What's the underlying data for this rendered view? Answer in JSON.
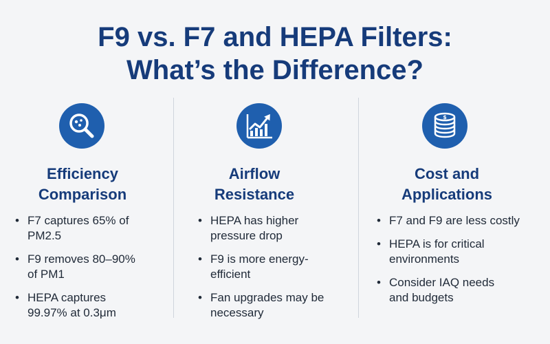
{
  "title": {
    "line1": "F9 vs. F7 and HEPA Filters:",
    "line2": "What’s the Difference?"
  },
  "colors": {
    "accent": "#1f5fae",
    "heading": "#163b7a",
    "background": "#f4f5f7"
  },
  "columns": [
    {
      "icon": "magnifier-icon",
      "heading_line1": "Efficiency",
      "heading_line2": "Comparison",
      "bullets": [
        {
          "line1": "F7 captures 65% of",
          "line2": "PM2.5"
        },
        {
          "line1": "F9 removes 80–90%",
          "line2": "of PM1"
        },
        {
          "line1": "HEPA captures",
          "line2": "99.97% at 0.3μm"
        }
      ]
    },
    {
      "icon": "growth-chart-icon",
      "heading_line1": "Airflow",
      "heading_line2": "Resistance",
      "bullets": [
        {
          "line1": "HEPA has higher",
          "line2": "pressure drop"
        },
        {
          "line1": "F9 is more energy-",
          "line2": "efficient"
        },
        {
          "line1": "Fan upgrades may be",
          "line2": "necessary"
        }
      ]
    },
    {
      "icon": "coin-stack-icon",
      "heading_line1": "Cost and",
      "heading_line2": "Applications",
      "bullets": [
        {
          "line1": "F7 and F9 are less costly",
          "line2": ""
        },
        {
          "line1": "HEPA is for critical",
          "line2": "environments"
        },
        {
          "line1": "Consider IAQ needs",
          "line2": "and budgets"
        }
      ]
    }
  ]
}
